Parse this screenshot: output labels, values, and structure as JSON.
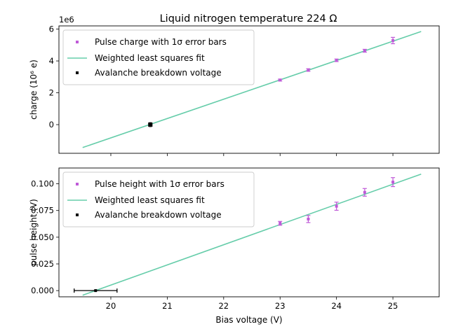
{
  "figure": {
    "title": "Liquid nitrogen temperature 224 Ω"
  },
  "chart_data": [
    {
      "type": "scatter",
      "panel": "top",
      "title": "Liquid nitrogen temperature 224 Ω",
      "xlabel": "",
      "ylabel": "charge (10⁶ e)",
      "offset_text": "1e6",
      "xlim": [
        19.08,
        25.82
      ],
      "ylim": [
        -1800000,
        6200000
      ],
      "x_ticks": [
        20,
        21,
        22,
        23,
        24,
        25
      ],
      "x_tick_labels_visible": false,
      "y_ticks": [
        0,
        2000000,
        4000000,
        6000000
      ],
      "y_tick_labels": [
        "0",
        "2",
        "4",
        "6"
      ],
      "grid": false,
      "legend_position": "upper-left",
      "legend": [
        "Pulse charge with 1σ error bars",
        "Weighted least squares fit",
        "Avalanche breakdown voltage"
      ],
      "series": [
        {
          "name": "Pulse charge with 1σ error bars",
          "color": "#bf5ad8",
          "marker": "square",
          "x": [
            23.0,
            23.5,
            24.0,
            24.5,
            25.0
          ],
          "y": [
            2800000,
            3430000,
            4040000,
            4640000,
            5280000
          ],
          "yerr": [
            60000,
            80000,
            80000,
            90000,
            200000
          ]
        },
        {
          "name": "Weighted least squares fit",
          "color": "#66cdaa",
          "type": "line",
          "x": [
            19.5,
            25.5
          ],
          "y": [
            -1440000,
            5850000
          ]
        },
        {
          "name": "Avalanche breakdown voltage",
          "color": "#000000",
          "marker": "square",
          "x": [
            20.7
          ],
          "y": [
            0
          ],
          "xerr": [
            0.03
          ],
          "yerr": [
            120000
          ]
        }
      ]
    },
    {
      "type": "scatter",
      "panel": "bottom",
      "xlabel": "Bias voltage (V)",
      "ylabel": "pulse height (V)",
      "xlim": [
        19.08,
        25.82
      ],
      "ylim": [
        -0.0058,
        0.1148
      ],
      "x_ticks": [
        20,
        21,
        22,
        23,
        24,
        25
      ],
      "x_tick_labels": [
        "20",
        "21",
        "22",
        "23",
        "24",
        "25"
      ],
      "y_ticks": [
        0,
        0.025,
        0.05,
        0.075,
        0.1
      ],
      "y_tick_labels": [
        "0.000",
        "0.025",
        "0.050",
        "0.075",
        "0.100"
      ],
      "grid": false,
      "legend_position": "upper-left",
      "legend": [
        "Pulse height with 1σ error bars",
        "Weighted least squares fit",
        "Avalanche breakdown voltage"
      ],
      "series": [
        {
          "name": "Pulse height with 1σ error bars",
          "color": "#bf5ad8",
          "marker": "square",
          "x": [
            23.0,
            23.5,
            24.0,
            24.5,
            25.0
          ],
          "y": [
            0.063,
            0.067,
            0.079,
            0.092,
            0.1016
          ],
          "yerr": [
            0.0018,
            0.0033,
            0.0038,
            0.0036,
            0.0042
          ]
        },
        {
          "name": "Weighted least squares fit",
          "color": "#66cdaa",
          "type": "line",
          "x": [
            19.5,
            25.5
          ],
          "y": [
            -0.0043,
            0.1091
          ]
        },
        {
          "name": "Avalanche breakdown voltage",
          "color": "#000000",
          "marker": "square",
          "x": [
            19.73
          ],
          "y": [
            0
          ],
          "xerr": [
            0.38
          ],
          "yerr": [
            0
          ]
        }
      ]
    }
  ]
}
